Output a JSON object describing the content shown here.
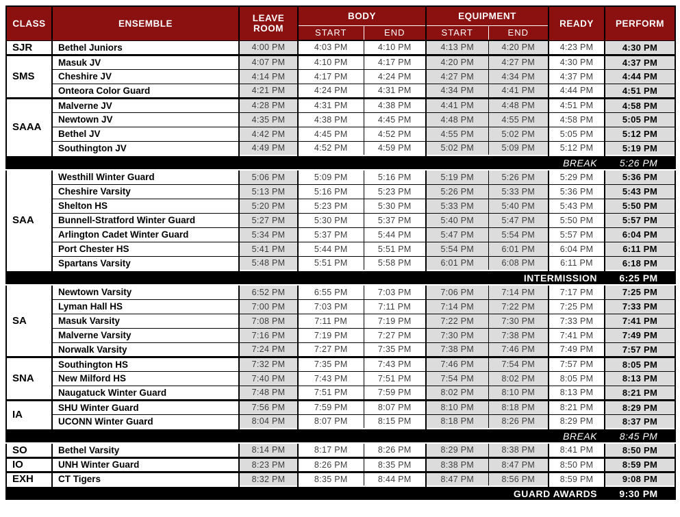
{
  "colors": {
    "header_bg": "#8b1111",
    "header_text": "#ffffff",
    "shaded_cell": "#dcdcdc",
    "divider_bg": "#000000",
    "divider_text": "#ffffff",
    "time_text": "#3d3d3d"
  },
  "header": {
    "class_label": "CLASS",
    "ensemble_label": "ENSEMBLE",
    "leave_room_label": "LEAVE ROOM",
    "body_label": "BODY",
    "equipment_label": "EQUIPMENT",
    "ready_label": "READY",
    "perform_label": "PERFORM",
    "start_label": "START",
    "end_label": "END"
  },
  "rows": [
    {
      "type": "entry",
      "class": "SJR",
      "class_rowspan": 1,
      "ensemble": "Bethel Juniors",
      "leave_room": "4:00 PM",
      "body_start": "4:03 PM",
      "body_end": "4:10 PM",
      "equipment_start": "4:13 PM",
      "equipment_end": "4:20 PM",
      "ready": "4:23 PM",
      "perform": "4:30 PM"
    },
    {
      "type": "entry",
      "class": "SMS",
      "class_rowspan": 3,
      "ensemble": "Masuk JV",
      "leave_room": "4:07 PM",
      "body_start": "4:10 PM",
      "body_end": "4:17 PM",
      "equipment_start": "4:20 PM",
      "equipment_end": "4:27 PM",
      "ready": "4:30 PM",
      "perform": "4:37 PM"
    },
    {
      "type": "entry",
      "ensemble": "Cheshire JV",
      "leave_room": "4:14 PM",
      "body_start": "4:17 PM",
      "body_end": "4:24 PM",
      "equipment_start": "4:27 PM",
      "equipment_end": "4:34 PM",
      "ready": "4:37 PM",
      "perform": "4:44 PM"
    },
    {
      "type": "entry",
      "ensemble": "Onteora Color Guard",
      "leave_room": "4:21 PM",
      "body_start": "4:24 PM",
      "body_end": "4:31 PM",
      "equipment_start": "4:34 PM",
      "equipment_end": "4:41 PM",
      "ready": "4:44 PM",
      "perform": "4:51 PM"
    },
    {
      "type": "entry",
      "class": "SAAA",
      "class_rowspan": 4,
      "ensemble": "Malverne JV",
      "leave_room": "4:28 PM",
      "body_start": "4:31 PM",
      "body_end": "4:38 PM",
      "equipment_start": "4:41 PM",
      "equipment_end": "4:48 PM",
      "ready": "4:51 PM",
      "perform": "4:58 PM"
    },
    {
      "type": "entry",
      "ensemble": "Newtown JV",
      "leave_room": "4:35 PM",
      "body_start": "4:38 PM",
      "body_end": "4:45 PM",
      "equipment_start": "4:48 PM",
      "equipment_end": "4:55 PM",
      "ready": "4:58 PM",
      "perform": "5:05 PM"
    },
    {
      "type": "entry",
      "ensemble": "Bethel JV",
      "leave_room": "4:42 PM",
      "body_start": "4:45 PM",
      "body_end": "4:52 PM",
      "equipment_start": "4:55 PM",
      "equipment_end": "5:02 PM",
      "ready": "5:05 PM",
      "perform": "5:12 PM"
    },
    {
      "type": "entry",
      "ensemble": "Southington JV",
      "leave_room": "4:49 PM",
      "body_start": "4:52 PM",
      "body_end": "4:59 PM",
      "equipment_start": "5:02 PM",
      "equipment_end": "5:09 PM",
      "ready": "5:12 PM",
      "perform": "5:19 PM"
    },
    {
      "type": "divider",
      "variant": "break",
      "label": "BREAK",
      "time": "5:26 PM"
    },
    {
      "type": "entry",
      "class": "SAA",
      "class_rowspan": 7,
      "ensemble": "Westhill Winter Guard",
      "leave_room": "5:06 PM",
      "body_start": "5:09 PM",
      "body_end": "5:16 PM",
      "equipment_start": "5:19 PM",
      "equipment_end": "5:26 PM",
      "ready": "5:29 PM",
      "perform": "5:36 PM"
    },
    {
      "type": "entry",
      "ensemble": "Cheshire Varsity",
      "leave_room": "5:13 PM",
      "body_start": "5:16 PM",
      "body_end": "5:23 PM",
      "equipment_start": "5:26 PM",
      "equipment_end": "5:33 PM",
      "ready": "5:36 PM",
      "perform": "5:43 PM"
    },
    {
      "type": "entry",
      "ensemble": "Shelton HS",
      "leave_room": "5:20 PM",
      "body_start": "5:23 PM",
      "body_end": "5:30 PM",
      "equipment_start": "5:33 PM",
      "equipment_end": "5:40 PM",
      "ready": "5:43 PM",
      "perform": "5:50 PM"
    },
    {
      "type": "entry",
      "ensemble": "Bunnell-Stratford Winter Guard",
      "leave_room": "5:27 PM",
      "body_start": "5:30 PM",
      "body_end": "5:37 PM",
      "equipment_start": "5:40 PM",
      "equipment_end": "5:47 PM",
      "ready": "5:50 PM",
      "perform": "5:57 PM"
    },
    {
      "type": "entry",
      "ensemble": "Arlington Cadet Winter Guard",
      "leave_room": "5:34 PM",
      "body_start": "5:37 PM",
      "body_end": "5:44 PM",
      "equipment_start": "5:47 PM",
      "equipment_end": "5:54 PM",
      "ready": "5:57 PM",
      "perform": "6:04 PM"
    },
    {
      "type": "entry",
      "ensemble": "Port Chester HS",
      "leave_room": "5:41 PM",
      "body_start": "5:44 PM",
      "body_end": "5:51 PM",
      "equipment_start": "5:54 PM",
      "equipment_end": "6:01 PM",
      "ready": "6:04 PM",
      "perform": "6:11 PM"
    },
    {
      "type": "entry",
      "ensemble": "Spartans Varsity",
      "leave_room": "5:48 PM",
      "body_start": "5:51 PM",
      "body_end": "5:58 PM",
      "equipment_start": "6:01 PM",
      "equipment_end": "6:08 PM",
      "ready": "6:11 PM",
      "perform": "6:18 PM"
    },
    {
      "type": "divider",
      "variant": "intermission",
      "label": "INTERMISSION",
      "time": "6:25 PM"
    },
    {
      "type": "entry",
      "class": "SA",
      "class_rowspan": 5,
      "ensemble": "Newtown Varsity",
      "leave_room": "6:52 PM",
      "body_start": "6:55 PM",
      "body_end": "7:03 PM",
      "equipment_start": "7:06 PM",
      "equipment_end": "7:14 PM",
      "ready": "7:17 PM",
      "perform": "7:25 PM"
    },
    {
      "type": "entry",
      "ensemble": "Lyman Hall HS",
      "leave_room": "7:00 PM",
      "body_start": "7:03 PM",
      "body_end": "7:11 PM",
      "equipment_start": "7:14 PM",
      "equipment_end": "7:22 PM",
      "ready": "7:25 PM",
      "perform": "7:33 PM"
    },
    {
      "type": "entry",
      "ensemble": "Masuk Varsity",
      "leave_room": "7:08 PM",
      "body_start": "7:11 PM",
      "body_end": "7:19 PM",
      "equipment_start": "7:22 PM",
      "equipment_end": "7:30 PM",
      "ready": "7:33 PM",
      "perform": "7:41 PM"
    },
    {
      "type": "entry",
      "ensemble": "Malverne Varsity",
      "leave_room": "7:16 PM",
      "body_start": "7:19 PM",
      "body_end": "7:27 PM",
      "equipment_start": "7:30 PM",
      "equipment_end": "7:38 PM",
      "ready": "7:41 PM",
      "perform": "7:49 PM"
    },
    {
      "type": "entry",
      "ensemble": "Norwalk Varsity",
      "leave_room": "7:24 PM",
      "body_start": "7:27 PM",
      "body_end": "7:35 PM",
      "equipment_start": "7:38 PM",
      "equipment_end": "7:46 PM",
      "ready": "7:49 PM",
      "perform": "7:57 PM"
    },
    {
      "type": "entry",
      "class": "SNA",
      "class_rowspan": 3,
      "ensemble": "Southington HS",
      "leave_room": "7:32 PM",
      "body_start": "7:35 PM",
      "body_end": "7:43 PM",
      "equipment_start": "7:46 PM",
      "equipment_end": "7:54 PM",
      "ready": "7:57 PM",
      "perform": "8:05 PM"
    },
    {
      "type": "entry",
      "ensemble": "New Milford HS",
      "leave_room": "7:40 PM",
      "body_start": "7:43 PM",
      "body_end": "7:51 PM",
      "equipment_start": "7:54 PM",
      "equipment_end": "8:02 PM",
      "ready": "8:05 PM",
      "perform": "8:13 PM"
    },
    {
      "type": "entry",
      "ensemble": "Naugatuck Winter Guard",
      "leave_room": "7:48 PM",
      "body_start": "7:51 PM",
      "body_end": "7:59 PM",
      "equipment_start": "8:02 PM",
      "equipment_end": "8:10 PM",
      "ready": "8:13 PM",
      "perform": "8:21 PM"
    },
    {
      "type": "entry",
      "class": "IA",
      "class_rowspan": 2,
      "ensemble": "SHU Winter Guard",
      "leave_room": "7:56 PM",
      "body_start": "7:59 PM",
      "body_end": "8:07 PM",
      "equipment_start": "8:10 PM",
      "equipment_end": "8:18 PM",
      "ready": "8:21 PM",
      "perform": "8:29 PM"
    },
    {
      "type": "entry",
      "ensemble": "UCONN Winter Guard",
      "leave_room": "8:04 PM",
      "body_start": "8:07 PM",
      "body_end": "8:15 PM",
      "equipment_start": "8:18 PM",
      "equipment_end": "8:26 PM",
      "ready": "8:29 PM",
      "perform": "8:37 PM"
    },
    {
      "type": "divider",
      "variant": "break",
      "label": "BREAK",
      "time": "8:45 PM"
    },
    {
      "type": "entry",
      "class": "SO",
      "class_rowspan": 1,
      "ensemble": "Bethel Varsity",
      "leave_room": "8:14 PM",
      "body_start": "8:17 PM",
      "body_end": "8:26 PM",
      "equipment_start": "8:29 PM",
      "equipment_end": "8:38 PM",
      "ready": "8:41 PM",
      "perform": "8:50 PM"
    },
    {
      "type": "entry",
      "class": "IO",
      "class_rowspan": 1,
      "ensemble": "UNH Winter Guard",
      "leave_room": "8:23 PM",
      "body_start": "8:26 PM",
      "body_end": "8:35 PM",
      "equipment_start": "8:38 PM",
      "equipment_end": "8:47 PM",
      "ready": "8:50 PM",
      "perform": "8:59 PM"
    },
    {
      "type": "entry",
      "class": "EXH",
      "class_rowspan": 1,
      "ensemble": "CT Tigers",
      "leave_room": "8:32 PM",
      "body_start": "8:35 PM",
      "body_end": "8:44 PM",
      "equipment_start": "8:47 PM",
      "equipment_end": "8:56 PM",
      "ready": "8:59 PM",
      "perform": "9:08 PM"
    },
    {
      "type": "divider",
      "variant": "awards",
      "label": "GUARD AWARDS",
      "time": "9:30 PM"
    }
  ]
}
